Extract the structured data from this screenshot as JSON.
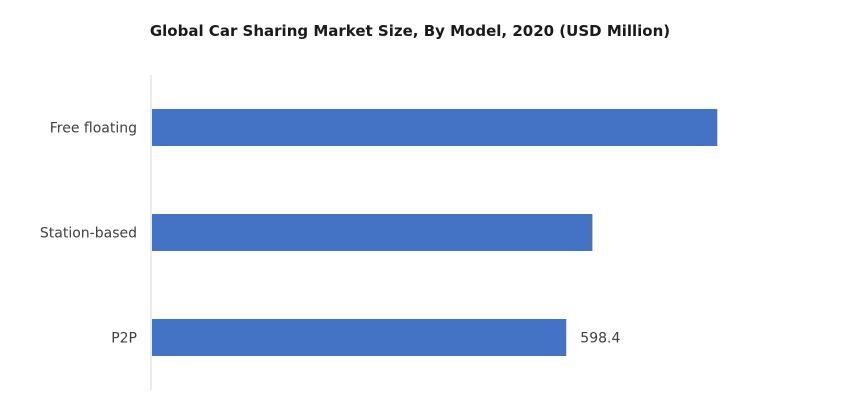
{
  "chart_data": {
    "type": "bar",
    "orientation": "horizontal",
    "title": "Global Car Sharing Market Size, By Model, 2020 (USD Million)",
    "categories": [
      "Free floating",
      "Station-based",
      "P2P"
    ],
    "values": [
      816,
      636,
      598.4
    ],
    "data_labels": [
      "",
      "",
      "598.4"
    ],
    "xlim": [
      0,
      1000
    ],
    "xlabel": "",
    "ylabel": "",
    "grid": false,
    "legend": "none",
    "bar_color": "#4472C4",
    "axis_color": "#d9d9d9"
  }
}
